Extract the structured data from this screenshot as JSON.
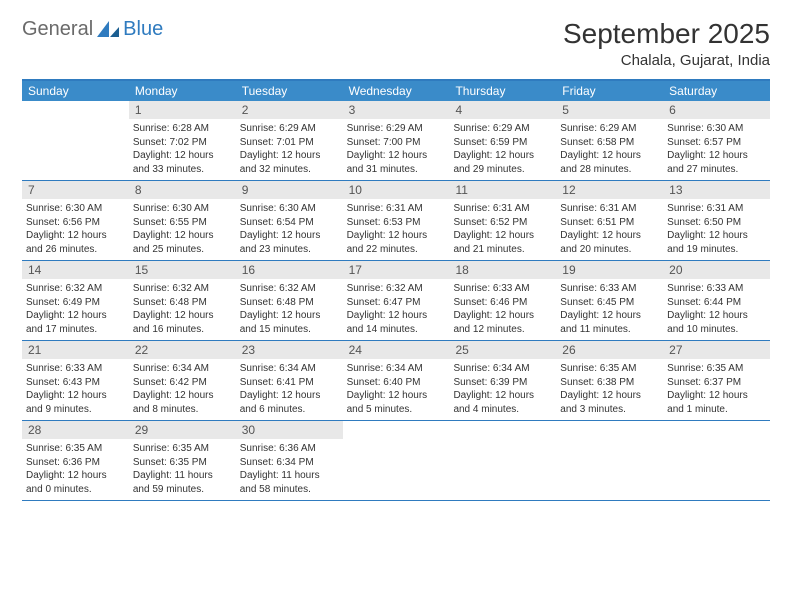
{
  "logo": {
    "general": "General",
    "blue": "Blue"
  },
  "title": "September 2025",
  "location": "Chalala, Gujarat, India",
  "colors": {
    "header_bar": "#3a8bc9",
    "border": "#2f7bbf",
    "daynum_bg": "#e8e8e8",
    "text": "#333333",
    "logo_gray": "#6a6a6a",
    "logo_blue": "#2f7bbf"
  },
  "dow": [
    "Sunday",
    "Monday",
    "Tuesday",
    "Wednesday",
    "Thursday",
    "Friday",
    "Saturday"
  ],
  "weeks": [
    [
      {
        "n": "",
        "sr": "",
        "ss": "",
        "dl": ""
      },
      {
        "n": "1",
        "sr": "Sunrise: 6:28 AM",
        "ss": "Sunset: 7:02 PM",
        "dl": "Daylight: 12 hours and 33 minutes."
      },
      {
        "n": "2",
        "sr": "Sunrise: 6:29 AM",
        "ss": "Sunset: 7:01 PM",
        "dl": "Daylight: 12 hours and 32 minutes."
      },
      {
        "n": "3",
        "sr": "Sunrise: 6:29 AM",
        "ss": "Sunset: 7:00 PM",
        "dl": "Daylight: 12 hours and 31 minutes."
      },
      {
        "n": "4",
        "sr": "Sunrise: 6:29 AM",
        "ss": "Sunset: 6:59 PM",
        "dl": "Daylight: 12 hours and 29 minutes."
      },
      {
        "n": "5",
        "sr": "Sunrise: 6:29 AM",
        "ss": "Sunset: 6:58 PM",
        "dl": "Daylight: 12 hours and 28 minutes."
      },
      {
        "n": "6",
        "sr": "Sunrise: 6:30 AM",
        "ss": "Sunset: 6:57 PM",
        "dl": "Daylight: 12 hours and 27 minutes."
      }
    ],
    [
      {
        "n": "7",
        "sr": "Sunrise: 6:30 AM",
        "ss": "Sunset: 6:56 PM",
        "dl": "Daylight: 12 hours and 26 minutes."
      },
      {
        "n": "8",
        "sr": "Sunrise: 6:30 AM",
        "ss": "Sunset: 6:55 PM",
        "dl": "Daylight: 12 hours and 25 minutes."
      },
      {
        "n": "9",
        "sr": "Sunrise: 6:30 AM",
        "ss": "Sunset: 6:54 PM",
        "dl": "Daylight: 12 hours and 23 minutes."
      },
      {
        "n": "10",
        "sr": "Sunrise: 6:31 AM",
        "ss": "Sunset: 6:53 PM",
        "dl": "Daylight: 12 hours and 22 minutes."
      },
      {
        "n": "11",
        "sr": "Sunrise: 6:31 AM",
        "ss": "Sunset: 6:52 PM",
        "dl": "Daylight: 12 hours and 21 minutes."
      },
      {
        "n": "12",
        "sr": "Sunrise: 6:31 AM",
        "ss": "Sunset: 6:51 PM",
        "dl": "Daylight: 12 hours and 20 minutes."
      },
      {
        "n": "13",
        "sr": "Sunrise: 6:31 AM",
        "ss": "Sunset: 6:50 PM",
        "dl": "Daylight: 12 hours and 19 minutes."
      }
    ],
    [
      {
        "n": "14",
        "sr": "Sunrise: 6:32 AM",
        "ss": "Sunset: 6:49 PM",
        "dl": "Daylight: 12 hours and 17 minutes."
      },
      {
        "n": "15",
        "sr": "Sunrise: 6:32 AM",
        "ss": "Sunset: 6:48 PM",
        "dl": "Daylight: 12 hours and 16 minutes."
      },
      {
        "n": "16",
        "sr": "Sunrise: 6:32 AM",
        "ss": "Sunset: 6:48 PM",
        "dl": "Daylight: 12 hours and 15 minutes."
      },
      {
        "n": "17",
        "sr": "Sunrise: 6:32 AM",
        "ss": "Sunset: 6:47 PM",
        "dl": "Daylight: 12 hours and 14 minutes."
      },
      {
        "n": "18",
        "sr": "Sunrise: 6:33 AM",
        "ss": "Sunset: 6:46 PM",
        "dl": "Daylight: 12 hours and 12 minutes."
      },
      {
        "n": "19",
        "sr": "Sunrise: 6:33 AM",
        "ss": "Sunset: 6:45 PM",
        "dl": "Daylight: 12 hours and 11 minutes."
      },
      {
        "n": "20",
        "sr": "Sunrise: 6:33 AM",
        "ss": "Sunset: 6:44 PM",
        "dl": "Daylight: 12 hours and 10 minutes."
      }
    ],
    [
      {
        "n": "21",
        "sr": "Sunrise: 6:33 AM",
        "ss": "Sunset: 6:43 PM",
        "dl": "Daylight: 12 hours and 9 minutes."
      },
      {
        "n": "22",
        "sr": "Sunrise: 6:34 AM",
        "ss": "Sunset: 6:42 PM",
        "dl": "Daylight: 12 hours and 8 minutes."
      },
      {
        "n": "23",
        "sr": "Sunrise: 6:34 AM",
        "ss": "Sunset: 6:41 PM",
        "dl": "Daylight: 12 hours and 6 minutes."
      },
      {
        "n": "24",
        "sr": "Sunrise: 6:34 AM",
        "ss": "Sunset: 6:40 PM",
        "dl": "Daylight: 12 hours and 5 minutes."
      },
      {
        "n": "25",
        "sr": "Sunrise: 6:34 AM",
        "ss": "Sunset: 6:39 PM",
        "dl": "Daylight: 12 hours and 4 minutes."
      },
      {
        "n": "26",
        "sr": "Sunrise: 6:35 AM",
        "ss": "Sunset: 6:38 PM",
        "dl": "Daylight: 12 hours and 3 minutes."
      },
      {
        "n": "27",
        "sr": "Sunrise: 6:35 AM",
        "ss": "Sunset: 6:37 PM",
        "dl": "Daylight: 12 hours and 1 minute."
      }
    ],
    [
      {
        "n": "28",
        "sr": "Sunrise: 6:35 AM",
        "ss": "Sunset: 6:36 PM",
        "dl": "Daylight: 12 hours and 0 minutes."
      },
      {
        "n": "29",
        "sr": "Sunrise: 6:35 AM",
        "ss": "Sunset: 6:35 PM",
        "dl": "Daylight: 11 hours and 59 minutes."
      },
      {
        "n": "30",
        "sr": "Sunrise: 6:36 AM",
        "ss": "Sunset: 6:34 PM",
        "dl": "Daylight: 11 hours and 58 minutes."
      },
      {
        "n": "",
        "sr": "",
        "ss": "",
        "dl": ""
      },
      {
        "n": "",
        "sr": "",
        "ss": "",
        "dl": ""
      },
      {
        "n": "",
        "sr": "",
        "ss": "",
        "dl": ""
      },
      {
        "n": "",
        "sr": "",
        "ss": "",
        "dl": ""
      }
    ]
  ]
}
